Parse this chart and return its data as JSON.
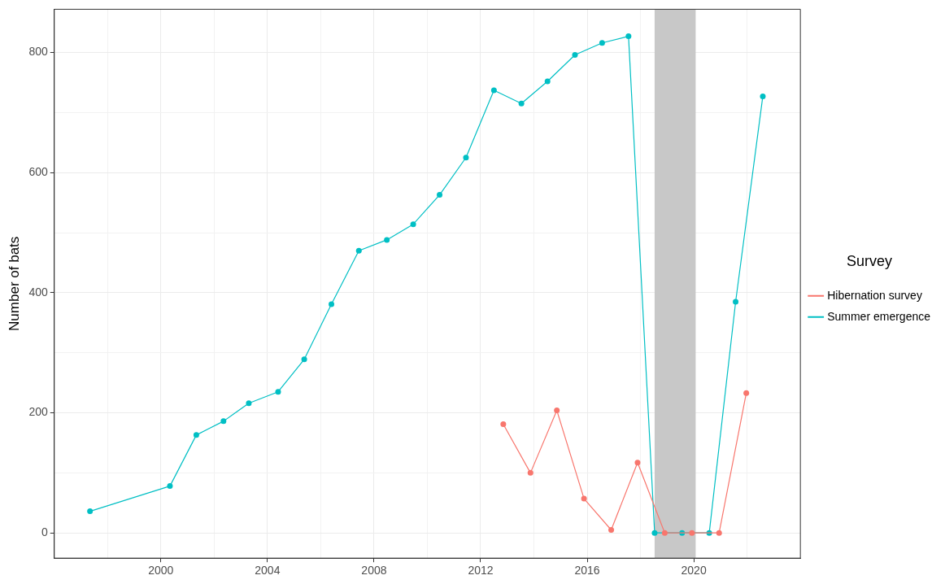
{
  "chart_data": {
    "type": "line",
    "ylabel": "Number of bats",
    "legend_title": "Survey",
    "legend": "right",
    "grid": true,
    "marker": "circle",
    "line_style": "solid",
    "xlim": [
      1996,
      2024
    ],
    "xticks": [
      {
        "value": 1998,
        "label": null
      },
      2000,
      {
        "value": 2002,
        "label": null
      },
      2004,
      {
        "value": 2006,
        "label": null
      },
      2008,
      {
        "value": 2010,
        "label": null
      },
      2012,
      {
        "value": 2014,
        "label": null
      },
      2016,
      {
        "value": 2018,
        "label": null
      },
      2020,
      {
        "value": 2022,
        "label": null
      }
    ],
    "ylim": [
      -42,
      872
    ],
    "yticks": [
      0,
      {
        "value": 100,
        "label": null
      },
      200,
      {
        "value": 300,
        "label": null
      },
      400,
      {
        "value": 500,
        "label": null
      },
      600,
      {
        "value": 700,
        "label": null
      },
      800
    ],
    "bands": [
      {
        "axis": "x",
        "from": 2018.53,
        "to": 2020.07,
        "color": "#c8c8c8"
      }
    ],
    "series": [
      {
        "name": "Hibernation survey",
        "color": "#f8766d",
        "x": [
          2012.85,
          2013.87,
          2014.86,
          2015.88,
          2016.9,
          2017.89,
          2018.91,
          2019.93,
          2020.95,
          2021.97
        ],
        "values": [
          181,
          100,
          204,
          57,
          5,
          117,
          0,
          0,
          0,
          233
        ]
      },
      {
        "name": "Summer emergence",
        "color": "#00bfc4",
        "x": [
          1997.34,
          2000.34,
          2001.33,
          2002.35,
          2003.3,
          2004.4,
          2005.38,
          2006.4,
          2007.43,
          2008.48,
          2009.47,
          2010.46,
          2011.45,
          2012.5,
          2013.53,
          2014.51,
          2015.54,
          2016.56,
          2017.55,
          2018.53,
          2019.56,
          2020.58,
          2021.57,
          2022.59
        ],
        "values": [
          36,
          78,
          163,
          186,
          216,
          235,
          289,
          381,
          470,
          488,
          514,
          563,
          625,
          737,
          715,
          752,
          796,
          816,
          827,
          0,
          0,
          0,
          385,
          727
        ]
      }
    ]
  }
}
